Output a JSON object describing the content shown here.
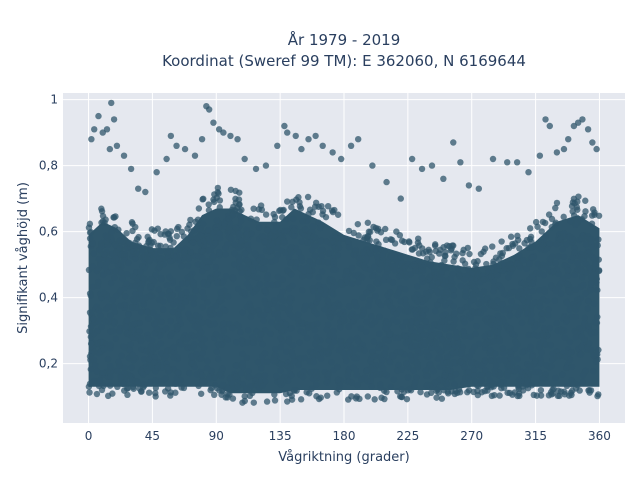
{
  "chart_data": {
    "type": "scatter",
    "title_line1": "År 1979 - 2019",
    "title_line2": "Koordinat (Sweref 99 TM): E 362060, N 6169644",
    "xlabel": "Vågriktning (grader)",
    "ylabel": "Signifikant våghöjd (m)",
    "xlim": [
      -18,
      378
    ],
    "ylim": [
      0.02,
      1.02
    ],
    "x_ticks": [
      {
        "value": 0,
        "label": "0"
      },
      {
        "value": 45,
        "label": "45"
      },
      {
        "value": 90,
        "label": "90"
      },
      {
        "value": 135,
        "label": "135"
      },
      {
        "value": 180,
        "label": "180"
      },
      {
        "value": 225,
        "label": "225"
      },
      {
        "value": 270,
        "label": "270"
      },
      {
        "value": 315,
        "label": "315"
      },
      {
        "value": 360,
        "label": "360"
      }
    ],
    "y_ticks": [
      {
        "value": 0.2,
        "label": "0,2"
      },
      {
        "value": 0.4,
        "label": "0,4"
      },
      {
        "value": 0.6,
        "label": "0,6"
      },
      {
        "value": 0.8,
        "label": "0,8"
      },
      {
        "value": 1.0,
        "label": "1"
      }
    ],
    "grid": true,
    "background": "#e5e8ef",
    "marker_color": "#2f566b",
    "dense_envelope": {
      "x": [
        0,
        10,
        20,
        30,
        45,
        60,
        70,
        80,
        90,
        100,
        110,
        120,
        135,
        145,
        155,
        165,
        180,
        195,
        210,
        225,
        240,
        255,
        270,
        285,
        300,
        315,
        330,
        345,
        360
      ],
      "y_lower": [
        0.1,
        0.1,
        0.1,
        0.1,
        0.1,
        0.1,
        0.1,
        0.1,
        0.1,
        0.08,
        0.08,
        0.08,
        0.08,
        0.09,
        0.09,
        0.09,
        0.09,
        0.09,
        0.09,
        0.09,
        0.09,
        0.09,
        0.1,
        0.1,
        0.1,
        0.1,
        0.1,
        0.1,
        0.1
      ],
      "y_upper": [
        0.64,
        0.68,
        0.66,
        0.62,
        0.6,
        0.6,
        0.64,
        0.7,
        0.72,
        0.72,
        0.7,
        0.68,
        0.68,
        0.72,
        0.7,
        0.68,
        0.64,
        0.62,
        0.6,
        0.58,
        0.56,
        0.55,
        0.54,
        0.55,
        0.58,
        0.62,
        0.68,
        0.7,
        0.66
      ]
    },
    "outliers": [
      {
        "x": 2,
        "y": 0.88
      },
      {
        "x": 4,
        "y": 0.91
      },
      {
        "x": 7,
        "y": 0.95
      },
      {
        "x": 10,
        "y": 0.9
      },
      {
        "x": 13,
        "y": 0.91
      },
      {
        "x": 15,
        "y": 0.85
      },
      {
        "x": 16,
        "y": 0.99
      },
      {
        "x": 18,
        "y": 0.94
      },
      {
        "x": 20,
        "y": 0.86
      },
      {
        "x": 25,
        "y": 0.83
      },
      {
        "x": 30,
        "y": 0.79
      },
      {
        "x": 35,
        "y": 0.73
      },
      {
        "x": 40,
        "y": 0.72
      },
      {
        "x": 48,
        "y": 0.78
      },
      {
        "x": 55,
        "y": 0.82
      },
      {
        "x": 58,
        "y": 0.89
      },
      {
        "x": 62,
        "y": 0.86
      },
      {
        "x": 68,
        "y": 0.85
      },
      {
        "x": 75,
        "y": 0.83
      },
      {
        "x": 80,
        "y": 0.88
      },
      {
        "x": 83,
        "y": 0.98
      },
      {
        "x": 85,
        "y": 0.97
      },
      {
        "x": 88,
        "y": 0.93
      },
      {
        "x": 92,
        "y": 0.91
      },
      {
        "x": 95,
        "y": 0.9
      },
      {
        "x": 100,
        "y": 0.89
      },
      {
        "x": 105,
        "y": 0.88
      },
      {
        "x": 110,
        "y": 0.82
      },
      {
        "x": 118,
        "y": 0.79
      },
      {
        "x": 125,
        "y": 0.8
      },
      {
        "x": 133,
        "y": 0.86
      },
      {
        "x": 138,
        "y": 0.92
      },
      {
        "x": 140,
        "y": 0.9
      },
      {
        "x": 146,
        "y": 0.89
      },
      {
        "x": 150,
        "y": 0.85
      },
      {
        "x": 155,
        "y": 0.88
      },
      {
        "x": 160,
        "y": 0.89
      },
      {
        "x": 165,
        "y": 0.86
      },
      {
        "x": 172,
        "y": 0.84
      },
      {
        "x": 178,
        "y": 0.82
      },
      {
        "x": 185,
        "y": 0.86
      },
      {
        "x": 190,
        "y": 0.88
      },
      {
        "x": 200,
        "y": 0.8
      },
      {
        "x": 210,
        "y": 0.75
      },
      {
        "x": 220,
        "y": 0.7
      },
      {
        "x": 228,
        "y": 0.82
      },
      {
        "x": 235,
        "y": 0.79
      },
      {
        "x": 242,
        "y": 0.8
      },
      {
        "x": 250,
        "y": 0.76
      },
      {
        "x": 257,
        "y": 0.87
      },
      {
        "x": 262,
        "y": 0.81
      },
      {
        "x": 268,
        "y": 0.74
      },
      {
        "x": 275,
        "y": 0.73
      },
      {
        "x": 285,
        "y": 0.82
      },
      {
        "x": 295,
        "y": 0.81
      },
      {
        "x": 302,
        "y": 0.81
      },
      {
        "x": 310,
        "y": 0.78
      },
      {
        "x": 318,
        "y": 0.83
      },
      {
        "x": 322,
        "y": 0.94
      },
      {
        "x": 325,
        "y": 0.92
      },
      {
        "x": 330,
        "y": 0.84
      },
      {
        "x": 335,
        "y": 0.85
      },
      {
        "x": 338,
        "y": 0.88
      },
      {
        "x": 342,
        "y": 0.92
      },
      {
        "x": 345,
        "y": 0.93
      },
      {
        "x": 348,
        "y": 0.94
      },
      {
        "x": 352,
        "y": 0.91
      },
      {
        "x": 355,
        "y": 0.87
      },
      {
        "x": 358,
        "y": 0.85
      }
    ]
  }
}
